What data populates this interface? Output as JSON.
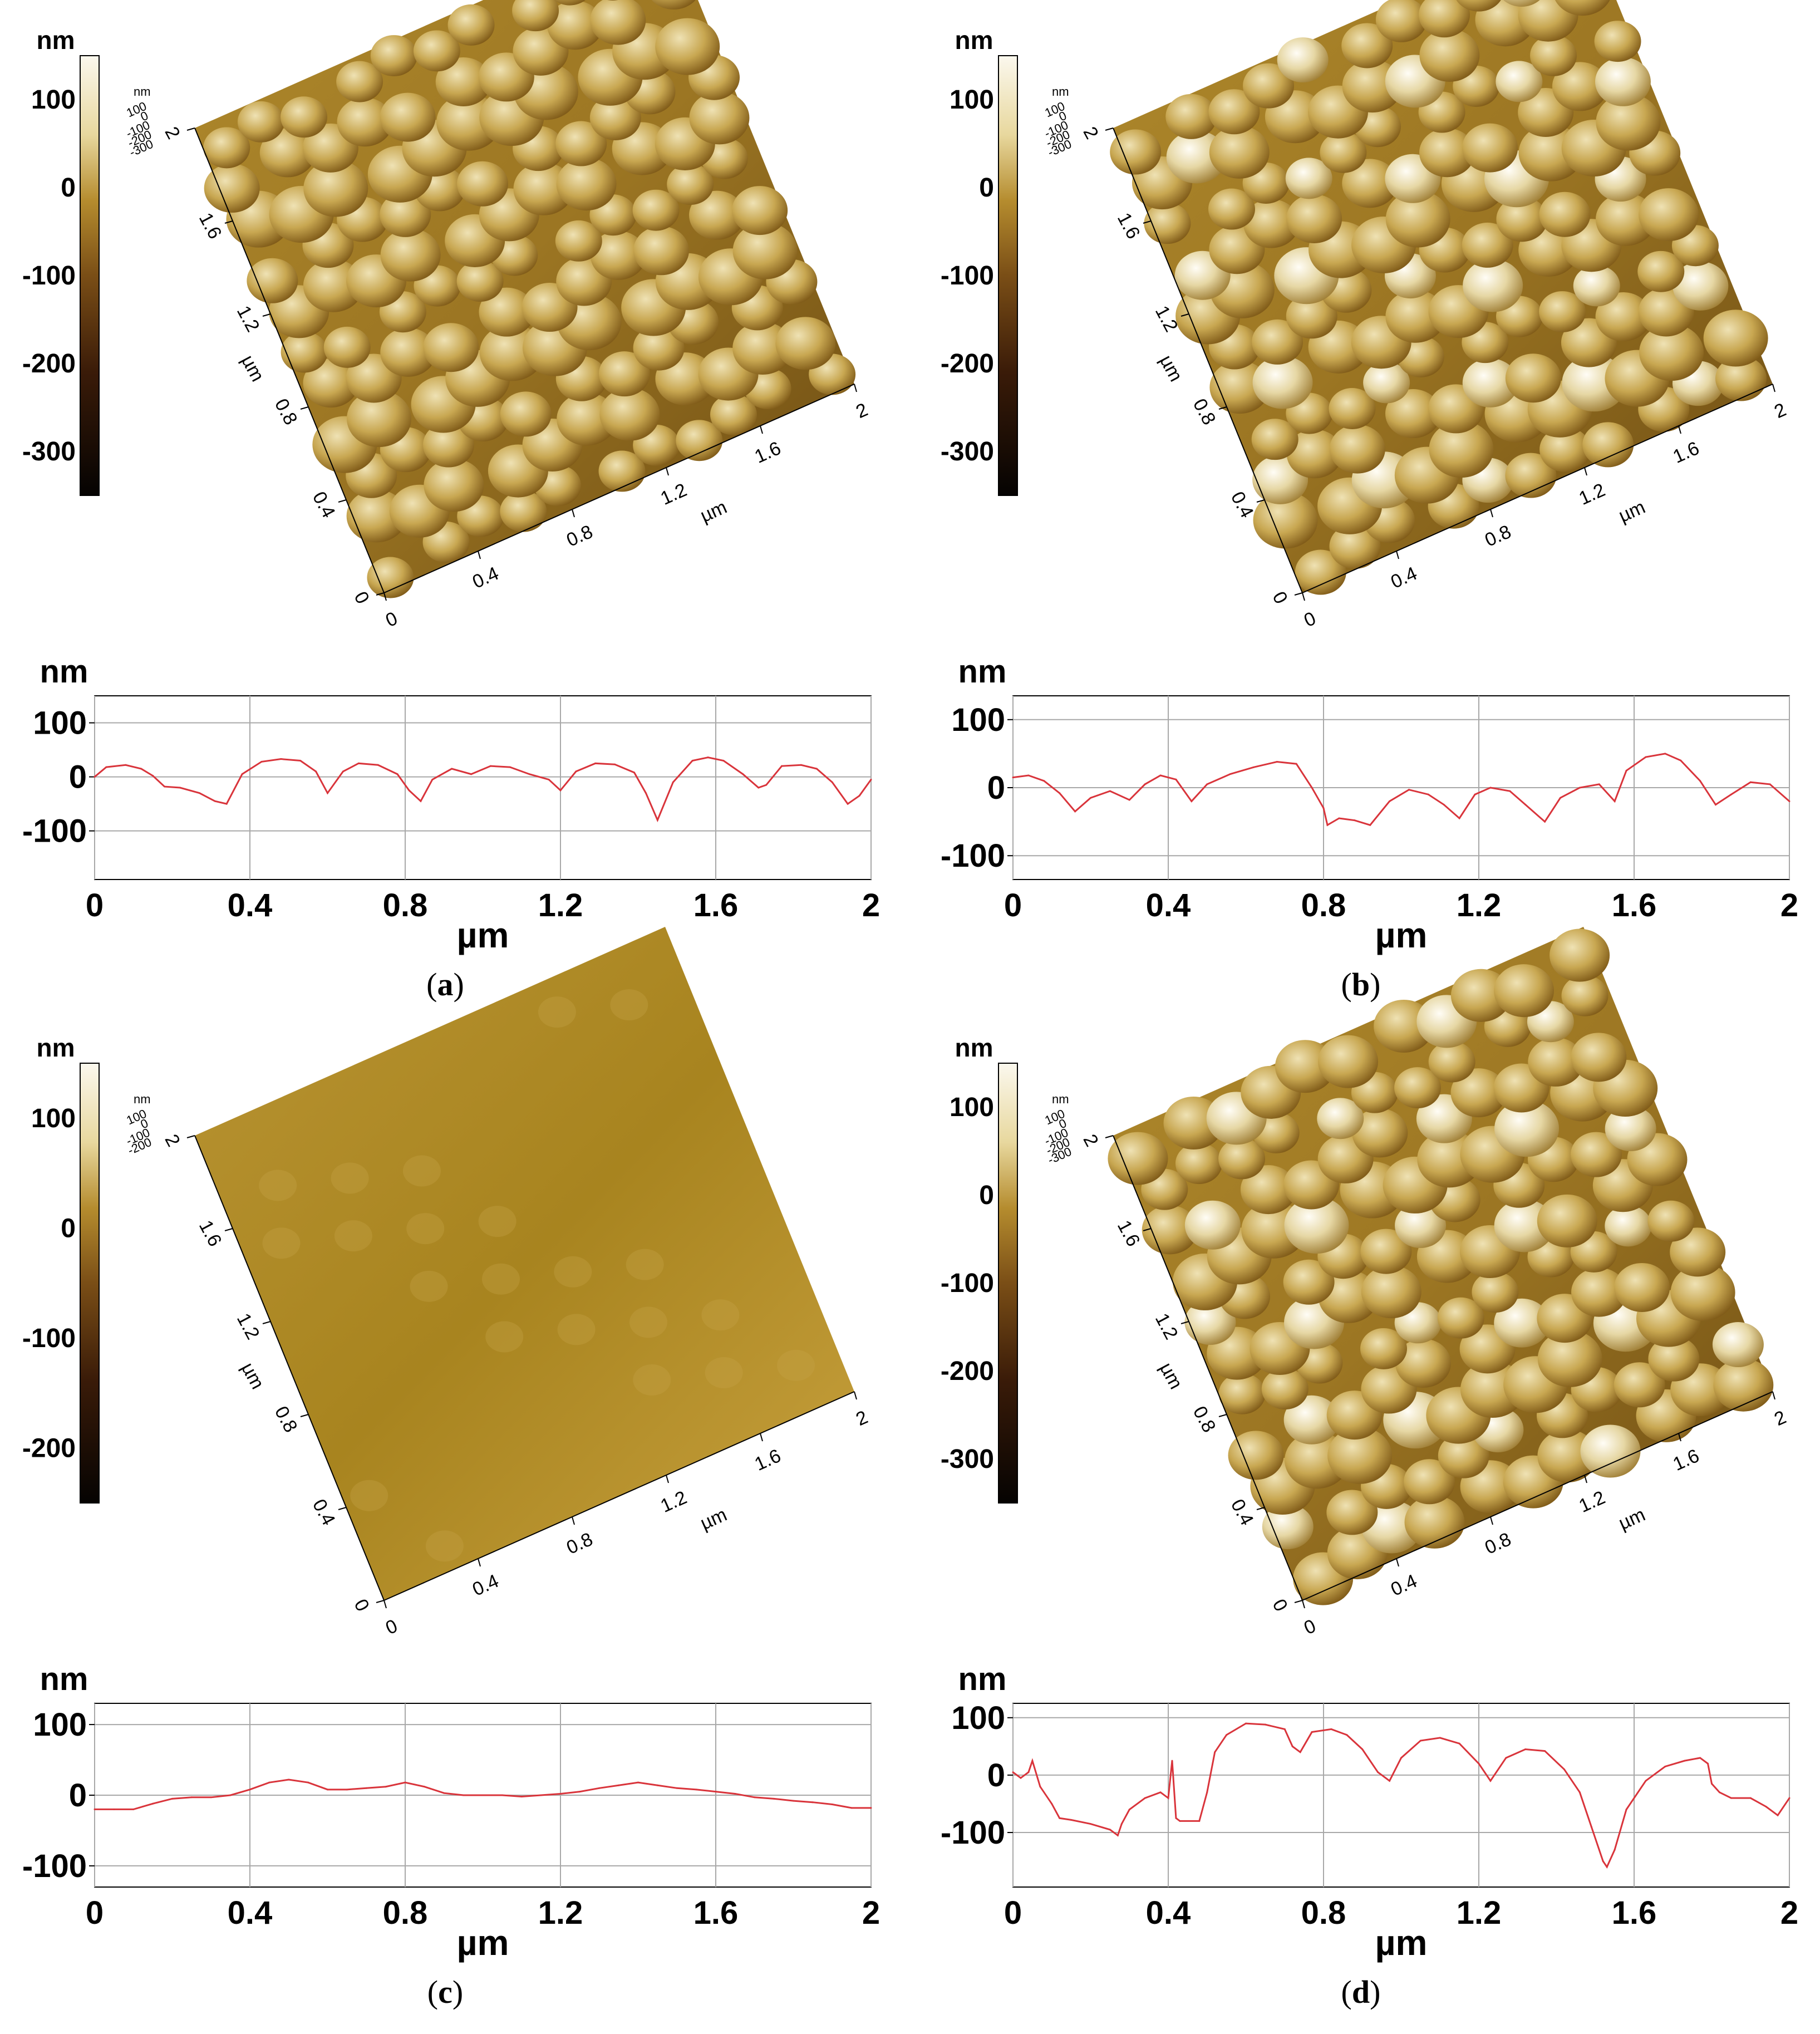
{
  "colors": {
    "profile_line": "#d9343b",
    "grid": "#a8a8a8",
    "surface_dark": "#6b4a12",
    "surface_mid": "#b08a2c",
    "surface_light": "#efe2b4"
  },
  "chart_data": [
    {
      "id": "a",
      "type": "line",
      "caption": "a",
      "colorbar": {
        "unit": "nm",
        "ticks": [
          "100",
          "0",
          "-100",
          "-200",
          "-300"
        ],
        "range": [
          -350,
          150
        ]
      },
      "surface": {
        "z_unit": "nm",
        "z_ticks": [
          "100",
          "0",
          "-100",
          "-200",
          "-300"
        ],
        "x_unit": "µm",
        "x_ticks": [
          "0",
          "0.4",
          "0.8",
          "1.2",
          "1.6",
          "2"
        ],
        "y_unit": "µm",
        "y_ticks": [
          "0",
          "0.4",
          "0.8",
          "1.2",
          "1.6",
          "2"
        ],
        "texture": "grainy"
      },
      "profile": {
        "ylabel": "nm",
        "xlabel": "µm",
        "xlim": [
          0,
          2
        ],
        "ylim": [
          -190,
          150
        ],
        "xticks": [
          "0",
          "0.4",
          "0.8",
          "1.2",
          "1.6",
          "2"
        ],
        "yticks": [
          "100",
          "0",
          "-100"
        ],
        "x": [
          0,
          0.03,
          0.08,
          0.12,
          0.15,
          0.18,
          0.22,
          0.27,
          0.31,
          0.34,
          0.38,
          0.43,
          0.48,
          0.53,
          0.57,
          0.6,
          0.64,
          0.68,
          0.73,
          0.78,
          0.81,
          0.84,
          0.87,
          0.92,
          0.97,
          1.02,
          1.07,
          1.12,
          1.17,
          1.2,
          1.24,
          1.29,
          1.34,
          1.39,
          1.42,
          1.45,
          1.49,
          1.54,
          1.58,
          1.62,
          1.67,
          1.71,
          1.73,
          1.77,
          1.82,
          1.86,
          1.9,
          1.94,
          1.97,
          2
        ],
        "y": [
          0,
          18,
          22,
          15,
          2,
          -18,
          -20,
          -30,
          -45,
          -50,
          5,
          28,
          33,
          30,
          10,
          -30,
          10,
          25,
          22,
          5,
          -25,
          -45,
          -5,
          15,
          5,
          20,
          18,
          5,
          -5,
          -25,
          10,
          25,
          23,
          8,
          -30,
          -80,
          -10,
          30,
          36,
          30,
          5,
          -20,
          -15,
          20,
          22,
          15,
          -10,
          -50,
          -35,
          -5
        ]
      }
    },
    {
      "id": "b",
      "type": "line",
      "caption": "b",
      "colorbar": {
        "unit": "nm",
        "ticks": [
          "100",
          "0",
          "-100",
          "-200",
          "-300"
        ],
        "range": [
          -350,
          150
        ]
      },
      "surface": {
        "z_unit": "nm",
        "z_ticks": [
          "100",
          "0",
          "-100",
          "-200",
          "-300"
        ],
        "x_unit": "µm",
        "x_ticks": [
          "0",
          "0.4",
          "0.8",
          "1.2",
          "1.6",
          "2"
        ],
        "y_unit": "µm",
        "y_ticks": [
          "0",
          "0.4",
          "0.8",
          "1.2",
          "1.6",
          "2"
        ],
        "texture": "grainy-bright"
      },
      "profile": {
        "ylabel": "nm",
        "xlabel": "µm",
        "xlim": [
          0,
          2
        ],
        "ylim": [
          -135,
          135
        ],
        "xticks": [
          "0",
          "0.4",
          "0.8",
          "1.2",
          "1.6",
          "2"
        ],
        "yticks": [
          "100",
          "0",
          "-100"
        ],
        "x": [
          0,
          0.04,
          0.08,
          0.12,
          0.16,
          0.2,
          0.25,
          0.3,
          0.34,
          0.38,
          0.42,
          0.46,
          0.5,
          0.56,
          0.62,
          0.68,
          0.73,
          0.77,
          0.8,
          0.81,
          0.84,
          0.88,
          0.92,
          0.97,
          1.02,
          1.07,
          1.11,
          1.15,
          1.19,
          1.23,
          1.28,
          1.32,
          1.37,
          1.41,
          1.46,
          1.51,
          1.55,
          1.58,
          1.63,
          1.68,
          1.72,
          1.77,
          1.81,
          1.85,
          1.9,
          1.95,
          2
        ],
        "y": [
          15,
          18,
          10,
          -8,
          -35,
          -15,
          -5,
          -18,
          5,
          18,
          12,
          -20,
          5,
          20,
          30,
          38,
          35,
          0,
          -30,
          -55,
          -45,
          -48,
          -55,
          -20,
          -3,
          -10,
          -25,
          -45,
          -10,
          0,
          -5,
          -25,
          -50,
          -15,
          0,
          5,
          -20,
          25,
          45,
          50,
          40,
          10,
          -25,
          -10,
          8,
          5,
          -20
        ]
      }
    },
    {
      "id": "c",
      "type": "line",
      "caption": "c",
      "colorbar": {
        "unit": "nm",
        "ticks": [
          "100",
          "0",
          "-100",
          "-200"
        ],
        "range": [
          -250,
          150
        ]
      },
      "surface": {
        "z_unit": "nm",
        "z_ticks": [
          "100",
          "0",
          "-100",
          "-200"
        ],
        "x_unit": "µm",
        "x_ticks": [
          "0",
          "0.4",
          "0.8",
          "1.2",
          "1.6",
          "2"
        ],
        "y_unit": "µm",
        "y_ticks": [
          "0",
          "0.4",
          "0.8",
          "1.2",
          "1.6",
          "2"
        ],
        "texture": "smooth"
      },
      "profile": {
        "ylabel": "nm",
        "xlabel": "µm",
        "xlim": [
          0,
          2
        ],
        "ylim": [
          -130,
          130
        ],
        "xticks": [
          "0",
          "0.4",
          "0.8",
          "1.2",
          "1.6",
          "2"
        ],
        "yticks": [
          "100",
          "0",
          "-100"
        ],
        "x": [
          0,
          0.05,
          0.1,
          0.15,
          0.2,
          0.25,
          0.3,
          0.35,
          0.4,
          0.45,
          0.5,
          0.55,
          0.6,
          0.65,
          0.7,
          0.75,
          0.8,
          0.85,
          0.9,
          0.95,
          1,
          1.05,
          1.1,
          1.15,
          1.2,
          1.25,
          1.3,
          1.35,
          1.4,
          1.45,
          1.5,
          1.55,
          1.6,
          1.65,
          1.7,
          1.75,
          1.8,
          1.85,
          1.9,
          1.95,
          2
        ],
        "y": [
          -20,
          -20,
          -20,
          -12,
          -5,
          -3,
          -3,
          0,
          8,
          18,
          22,
          18,
          8,
          8,
          10,
          12,
          18,
          12,
          3,
          0,
          0,
          0,
          -2,
          0,
          2,
          5,
          10,
          14,
          18,
          14,
          10,
          8,
          5,
          2,
          -3,
          -5,
          -8,
          -10,
          -13,
          -18,
          -18
        ]
      }
    },
    {
      "id": "d",
      "type": "line",
      "caption": "d",
      "colorbar": {
        "unit": "nm",
        "ticks": [
          "100",
          "0",
          "-100",
          "-200",
          "-300"
        ],
        "range": [
          -350,
          150
        ]
      },
      "surface": {
        "z_unit": "nm",
        "z_ticks": [
          "100",
          "0",
          "-100",
          "-200",
          "-300"
        ],
        "x_unit": "µm",
        "x_ticks": [
          "0",
          "0.4",
          "0.8",
          "1.2",
          "1.6",
          "2"
        ],
        "y_unit": "µm",
        "y_ticks": [
          "0",
          "0.4",
          "0.8",
          "1.2",
          "1.6",
          "2"
        ],
        "texture": "grainy-bright"
      },
      "profile": {
        "ylabel": "nm",
        "xlabel": "µm",
        "xlim": [
          0,
          2
        ],
        "ylim": [
          -195,
          125
        ],
        "xticks": [
          "0",
          "0.4",
          "0.8",
          "1.2",
          "1.6",
          "2"
        ],
        "yticks": [
          "100",
          "0",
          "-100"
        ],
        "x": [
          0,
          0.02,
          0.04,
          0.05,
          0.07,
          0.1,
          0.12,
          0.15,
          0.2,
          0.25,
          0.27,
          0.28,
          0.3,
          0.34,
          0.38,
          0.4,
          0.41,
          0.42,
          0.43,
          0.48,
          0.5,
          0.52,
          0.55,
          0.6,
          0.65,
          0.7,
          0.72,
          0.74,
          0.77,
          0.82,
          0.86,
          0.9,
          0.94,
          0.97,
          1.0,
          1.05,
          1.1,
          1.15,
          1.2,
          1.23,
          1.27,
          1.32,
          1.37,
          1.42,
          1.46,
          1.49,
          1.52,
          1.53,
          1.55,
          1.58,
          1.63,
          1.68,
          1.73,
          1.77,
          1.79,
          1.8,
          1.82,
          1.85,
          1.9,
          1.94,
          1.97,
          2
        ],
        "y": [
          5,
          -5,
          5,
          25,
          -20,
          -50,
          -75,
          -78,
          -85,
          -95,
          -105,
          -85,
          -60,
          -40,
          -30,
          -40,
          25,
          -75,
          -80,
          -80,
          -30,
          40,
          70,
          90,
          88,
          80,
          50,
          40,
          75,
          80,
          70,
          45,
          5,
          -10,
          30,
          60,
          65,
          55,
          20,
          -10,
          30,
          45,
          42,
          10,
          -30,
          -90,
          -150,
          -160,
          -130,
          -60,
          -10,
          15,
          25,
          30,
          20,
          -15,
          -30,
          -40,
          -40,
          -55,
          -70,
          -40
        ]
      }
    }
  ]
}
